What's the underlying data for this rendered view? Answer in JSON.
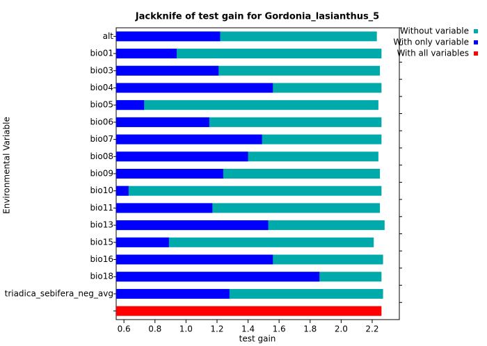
{
  "chart_data": {
    "type": "hbar",
    "title": "Jackknife of test gain for Gordonia_lasianthus_5",
    "x_label": "test gain",
    "y_label": "Environmental Variable",
    "categories": [
      "alt",
      "bio01",
      "bio03",
      "bio04",
      "bio05",
      "bio06",
      "bio07",
      "bio08",
      "bio09",
      "bio10",
      "bio11",
      "bio13",
      "bio15",
      "bio16",
      "bio18",
      "triadica_sebifera_neg_avg",
      null
    ],
    "series": [
      {
        "name": "Without variable",
        "color": "#00aaaa",
        "values": [
          2.23,
          2.26,
          2.25,
          2.26,
          2.24,
          2.26,
          2.26,
          2.24,
          2.25,
          2.26,
          2.25,
          2.28,
          2.21,
          2.27,
          2.26,
          2.27,
          null
        ]
      },
      {
        "name": "With only variable",
        "color": "#0000ff",
        "values": [
          1.22,
          0.94,
          1.21,
          1.56,
          0.73,
          1.15,
          1.49,
          1.4,
          1.24,
          0.63,
          1.17,
          1.53,
          0.89,
          1.56,
          1.86,
          1.28,
          null
        ]
      },
      {
        "name": "With all variables",
        "color": "#ff0000",
        "values": [
          null,
          null,
          null,
          null,
          null,
          null,
          null,
          null,
          null,
          null,
          null,
          null,
          null,
          null,
          null,
          null,
          2.26
        ]
      }
    ],
    "xlim": [
      0.55,
      2.375
    ],
    "xticks": [
      0.6,
      0.8,
      {
        "value": 1.0,
        "label": "1.0"
      },
      1.2,
      1.4,
      1.6,
      1.8,
      {
        "value": 2.0,
        "label": "2.0"
      },
      2.2
    ],
    "legend": "outside-top-right"
  }
}
